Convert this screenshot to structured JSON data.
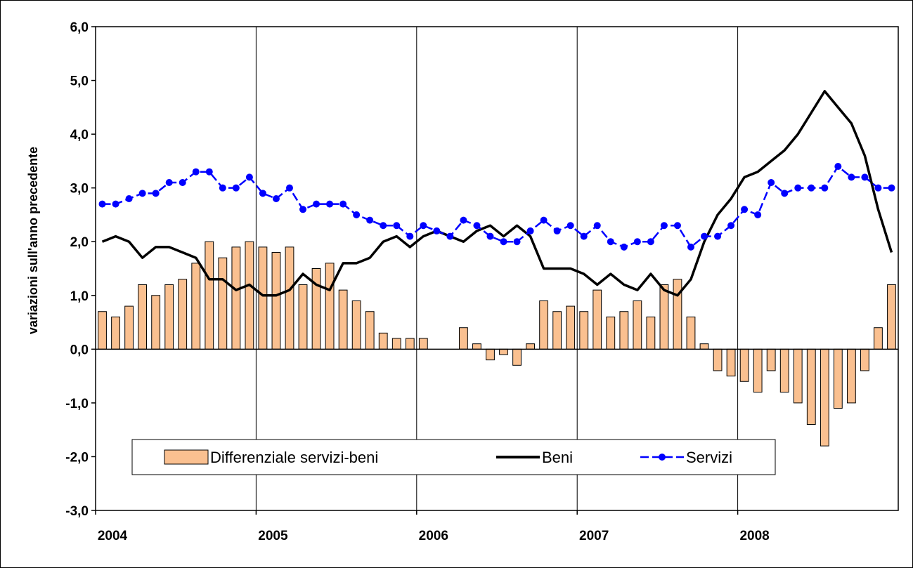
{
  "chart_data": {
    "type": "bar",
    "title": "",
    "ylabel": "variazioni sull'anno precedente",
    "xlabel": "",
    "ylim": [
      -3.0,
      6.0
    ],
    "yticks": [
      "6,0",
      "5,0",
      "4,0",
      "3,0",
      "2,0",
      "1,0",
      "0,0",
      "-1,0",
      "-2,0",
      "-3,0"
    ],
    "x_tick_labels": [
      "2004",
      "2005",
      "2006",
      "2007",
      "2008"
    ],
    "period": "monthly, Jan 2004 - Dec 2008",
    "grid": "vertical lines at year boundaries",
    "legend_position": "bottom-left",
    "colors": {
      "bars": "#FAC090",
      "bar_edge": "#000000",
      "beni": "#000000",
      "servizi": "#0000FF"
    },
    "series": [
      {
        "name": "Differenziale servizi-beni",
        "kind": "bar",
        "values": [
          0.7,
          0.6,
          0.8,
          1.2,
          1.0,
          1.2,
          1.3,
          1.6,
          2.0,
          1.7,
          1.9,
          2.0,
          1.9,
          1.8,
          1.9,
          1.2,
          1.5,
          1.6,
          1.1,
          0.9,
          0.7,
          0.3,
          0.2,
          0.2,
          0.2,
          0.0,
          0.0,
          0.4,
          0.1,
          -0.2,
          -0.1,
          -0.3,
          0.1,
          0.9,
          0.7,
          0.8,
          0.7,
          1.1,
          0.6,
          0.7,
          0.9,
          0.6,
          1.2,
          1.3,
          0.6,
          0.1,
          -0.4,
          -0.5,
          -0.6,
          -0.8,
          -0.4,
          -0.8,
          -1.0,
          -1.4,
          -1.8,
          -1.1,
          -1.0,
          -0.4,
          0.4,
          1.2
        ]
      },
      {
        "name": "Beni",
        "kind": "line",
        "values": [
          2.0,
          2.1,
          2.0,
          1.7,
          1.9,
          1.9,
          1.8,
          1.7,
          1.3,
          1.3,
          1.1,
          1.2,
          1.0,
          1.0,
          1.1,
          1.4,
          1.2,
          1.1,
          1.6,
          1.6,
          1.7,
          2.0,
          2.1,
          1.9,
          2.1,
          2.2,
          2.1,
          2.0,
          2.2,
          2.3,
          2.1,
          2.3,
          2.1,
          1.5,
          1.5,
          1.5,
          1.4,
          1.2,
          1.4,
          1.2,
          1.1,
          1.4,
          1.1,
          1.0,
          1.3,
          2.0,
          2.5,
          2.8,
          3.2,
          3.3,
          3.5,
          3.7,
          4.0,
          4.4,
          4.8,
          4.5,
          4.2,
          3.6,
          2.6,
          1.8
        ]
      },
      {
        "name": "Servizi",
        "kind": "line-marker",
        "values": [
          2.7,
          2.7,
          2.8,
          2.9,
          2.9,
          3.1,
          3.1,
          3.3,
          3.3,
          3.0,
          3.0,
          3.2,
          2.9,
          2.8,
          3.0,
          2.6,
          2.7,
          2.7,
          2.7,
          2.5,
          2.4,
          2.3,
          2.3,
          2.1,
          2.3,
          2.2,
          2.1,
          2.4,
          2.3,
          2.1,
          2.0,
          2.0,
          2.2,
          2.4,
          2.2,
          2.3,
          2.1,
          2.3,
          2.0,
          1.9,
          2.0,
          2.0,
          2.3,
          2.3,
          1.9,
          2.1,
          2.1,
          2.3,
          2.6,
          2.5,
          3.1,
          2.9,
          3.0,
          3.0,
          3.0,
          3.4,
          3.2,
          3.2,
          3.0,
          3.0
        ]
      }
    ]
  }
}
